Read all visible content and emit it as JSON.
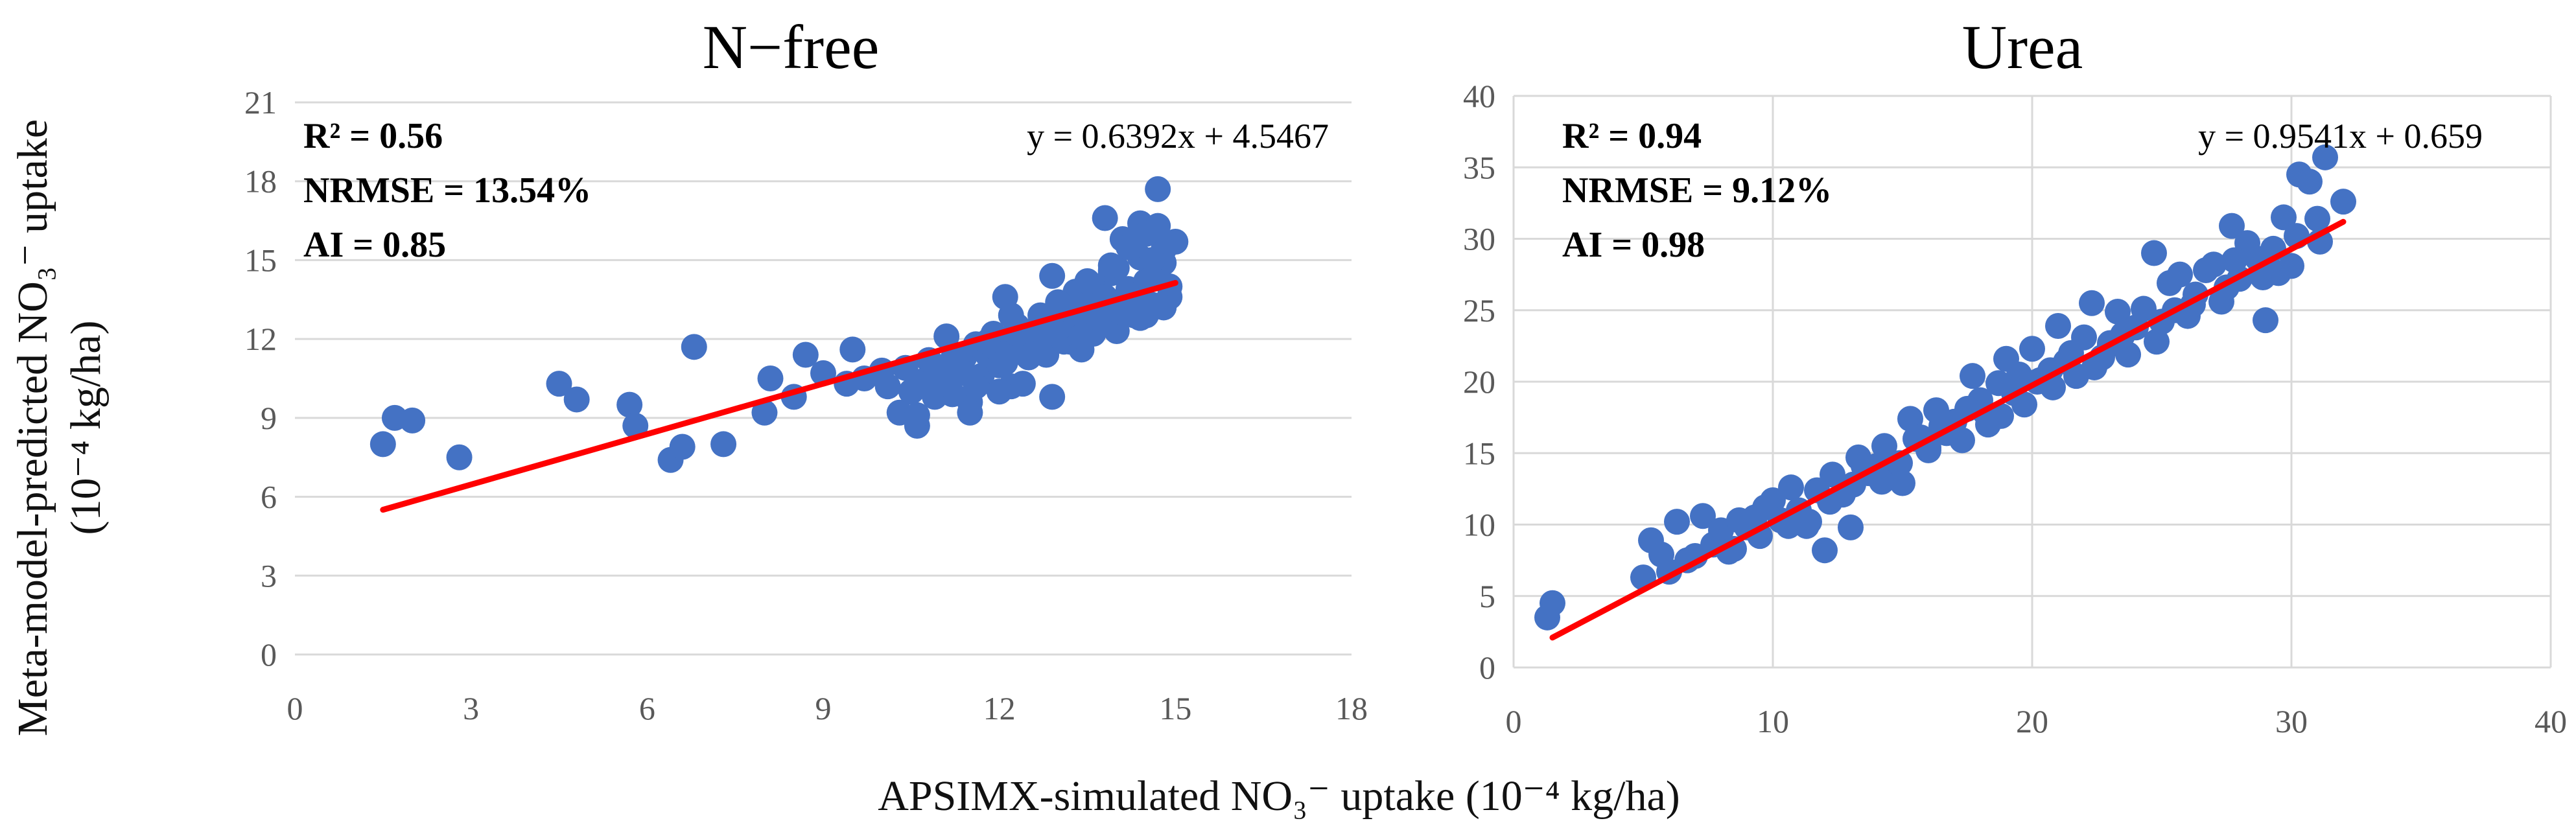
{
  "figure": {
    "ylabel_line1": "Meta-model-predicted NO₃⁻ uptake",
    "ylabel_line2": "(10⁻⁴ kg/ha)",
    "xlabel": "APSIMX-simulated NO₃⁻ uptake (10⁻⁴ kg/ha)"
  },
  "colors": {
    "points": "#4472C4",
    "trendline": "#FF0000",
    "grid": "#D9D9D9"
  },
  "chart_data": [
    {
      "type": "scatter",
      "title": "N−free",
      "xlim": [
        0,
        18
      ],
      "ylim": [
        0,
        21
      ],
      "xticks": [
        "0",
        "3",
        "6",
        "9",
        "12",
        "15",
        "18"
      ],
      "yticks": [
        "0",
        "3",
        "6",
        "9",
        "12",
        "15",
        "18",
        "21"
      ],
      "grid": "horizontal",
      "stats": {
        "r2": "R² = 0.56",
        "nrmse": "NRMSE = 13.54%",
        "ai": "AI = 0.85"
      },
      "equation": "y = 0.6392x + 4.5467",
      "trendline": {
        "slope": 0.6392,
        "intercept": 4.5467,
        "x_range": [
          1.5,
          15
        ]
      },
      "x": [
        1.5,
        1.7,
        2.0,
        2.8,
        4.5,
        4.8,
        5.7,
        5.8,
        6.4,
        6.6,
        6.8,
        7.3,
        8.0,
        8.1,
        8.5,
        8.7,
        9.0,
        9.4,
        9.5,
        9.7,
        10.0,
        10.1,
        10.3,
        10.4,
        10.5,
        10.6,
        10.7,
        10.8,
        10.9,
        11.0,
        11.1,
        11.2,
        11.3,
        11.4,
        11.5,
        11.6,
        11.7,
        11.8,
        11.9,
        12.0,
        12.1,
        12.2,
        12.3,
        12.4,
        12.5,
        12.6,
        12.7,
        12.8,
        12.9,
        13.0,
        13.1,
        13.2,
        13.3,
        13.4,
        13.5,
        13.6,
        13.7,
        13.8,
        13.9,
        14.0,
        14.1,
        14.2,
        14.3,
        14.4,
        14.5,
        14.6,
        14.7,
        14.8,
        14.9,
        15.0,
        12.0,
        12.3,
        12.6,
        12.9,
        13.2,
        13.5,
        13.8,
        14.1,
        14.4,
        14.7,
        13.0,
        13.3,
        13.6,
        13.9,
        14.2,
        14.5,
        14.8,
        11.2,
        11.6,
        12.2,
        12.5,
        12.8,
        13.1,
        13.4,
        13.7,
        14.0,
        14.3,
        14.6,
        14.9,
        11.0,
        11.4,
        11.8,
        12.1,
        12.4,
        12.7,
        13.0,
        13.3,
        13.6,
        13.9,
        14.2,
        14.5,
        14.8,
        12.9,
        13.4,
        14.0,
        14.6,
        12.2,
        10.6,
        11.5,
        12.0,
        13.5,
        14.1,
        14.4
      ],
      "y": [
        8.0,
        9.0,
        8.9,
        7.5,
        10.3,
        9.7,
        9.5,
        8.7,
        7.4,
        7.9,
        11.7,
        8.0,
        9.2,
        10.5,
        9.8,
        11.4,
        10.7,
        10.3,
        11.6,
        10.5,
        10.8,
        10.2,
        9.2,
        10.9,
        10.0,
        8.7,
        10.4,
        11.2,
        9.8,
        10.5,
        12.1,
        9.9,
        10.8,
        11.3,
        9.6,
        11.8,
        10.6,
        11.4,
        12.2,
        11.0,
        13.6,
        11.7,
        12.5,
        10.3,
        11.8,
        12.0,
        12.9,
        11.4,
        9.8,
        12.6,
        11.9,
        12.8,
        13.4,
        12.1,
        13.2,
        14.0,
        12.6,
        13.6,
        14.5,
        12.3,
        15.8,
        13.9,
        12.9,
        16.4,
        14.2,
        13.3,
        16.3,
        14.9,
        13.6,
        15.7,
        11.5,
        12.2,
        11.6,
        14.4,
        11.9,
        12.7,
        16.6,
        13.4,
        15.1,
        17.7,
        12.4,
        13.8,
        12.2,
        14.6,
        13.7,
        12.9,
        15.4,
        11.2,
        10.2,
        12.9,
        11.3,
        12.2,
        13.1,
        11.6,
        12.8,
        14.7,
        13.5,
        15.0,
        14.0,
        10.3,
        10.7,
        11.9,
        11.1,
        12.3,
        11.5,
        13.4,
        12.5,
        13.0,
        14.8,
        15.5,
        16.0,
        13.2,
        12.3,
        12.1,
        13.1,
        14.3,
        10.2,
        9.1,
        9.2,
        10.0,
        14.2,
        13.0,
        12.8
      ]
    },
    {
      "type": "scatter",
      "title": "Urea",
      "xlim": [
        0,
        40
      ],
      "ylim": [
        0,
        40
      ],
      "xticks": [
        "0",
        "10",
        "20",
        "30",
        "40"
      ],
      "yticks": [
        "0",
        "5",
        "10",
        "15",
        "20",
        "25",
        "30",
        "35",
        "40"
      ],
      "grid": "both",
      "stats": {
        "r2": "R² = 0.94",
        "nrmse": "NRMSE = 9.12%",
        "ai": "AI = 0.98"
      },
      "equation": "y = 0.9541x + 0.659",
      "trendline": {
        "slope": 0.9541,
        "intercept": 0.659,
        "x_range": [
          1.5,
          32
        ]
      },
      "x": [
        1.3,
        1.5,
        5.0,
        5.3,
        5.7,
        6.0,
        6.3,
        6.7,
        7.0,
        7.3,
        7.7,
        8.0,
        8.3,
        8.7,
        9.0,
        9.3,
        9.7,
        10.0,
        10.3,
        10.7,
        11.0,
        11.3,
        11.7,
        12.0,
        12.3,
        12.7,
        13.0,
        13.3,
        13.7,
        14.0,
        14.3,
        14.7,
        15.0,
        15.3,
        15.7,
        16.0,
        16.3,
        16.7,
        17.0,
        17.3,
        17.7,
        18.0,
        18.3,
        18.7,
        19.0,
        19.3,
        19.7,
        20.0,
        20.3,
        20.7,
        21.0,
        21.3,
        21.7,
        22.0,
        22.3,
        22.7,
        23.0,
        23.3,
        23.7,
        24.0,
        24.3,
        24.7,
        25.0,
        25.3,
        25.7,
        26.0,
        26.3,
        26.7,
        27.0,
        27.3,
        27.7,
        28.0,
        28.3,
        28.7,
        29.0,
        29.3,
        29.7,
        30.0,
        30.3,
        30.7,
        31.0,
        31.3,
        32.0,
        24.8,
        26.2,
        27.5,
        28.9,
        30.2,
        31.1,
        22.4,
        20.8,
        18.2,
        16.5,
        14.9,
        13.1,
        12.2,
        11.4,
        10.6,
        19.5,
        21.5,
        23.5,
        25.5,
        17.5,
        15.5,
        13.5,
        9.5,
        8.5,
        29.5,
        27.8,
        23.0,
        20.2,
        18.8,
        16.0,
        14.2
      ],
      "y": [
        3.5,
        4.5,
        6.3,
        8.9,
        7.9,
        6.7,
        10.2,
        7.5,
        7.8,
        10.6,
        8.6,
        9.6,
        8.1,
        10.3,
        9.8,
        10.5,
        11.2,
        11.7,
        10.3,
        12.6,
        11.0,
        9.9,
        12.4,
        8.2,
        13.5,
        12.1,
        9.8,
        14.7,
        13.6,
        14.1,
        15.5,
        14.0,
        12.9,
        17.4,
        16.1,
        15.2,
        18.0,
        16.4,
        17.2,
        15.9,
        20.4,
        18.7,
        17.0,
        19.9,
        21.6,
        19.2,
        18.4,
        22.3,
        20.1,
        20.8,
        23.9,
        21.4,
        20.4,
        23.1,
        25.5,
        21.7,
        22.6,
        24.9,
        21.9,
        23.8,
        25.1,
        29.0,
        24.2,
        26.9,
        27.5,
        24.6,
        26.1,
        27.8,
        28.2,
        25.6,
        30.9,
        27.2,
        29.7,
        28.6,
        24.3,
        29.3,
        31.5,
        28.1,
        34.5,
        34.0,
        31.4,
        35.7,
        32.6,
        22.8,
        25.4,
        26.6,
        27.3,
        30.2,
        29.8,
        21.0,
        19.6,
        17.8,
        16.9,
        14.3,
        12.8,
        11.6,
        10.2,
        9.9,
        20.5,
        22.0,
        23.3,
        25.0,
        18.1,
        16.0,
        14.1,
        9.2,
        8.3,
        27.6,
        28.5,
        22.7,
        20.0,
        17.6,
        15.4,
        13.0
      ]
    }
  ]
}
